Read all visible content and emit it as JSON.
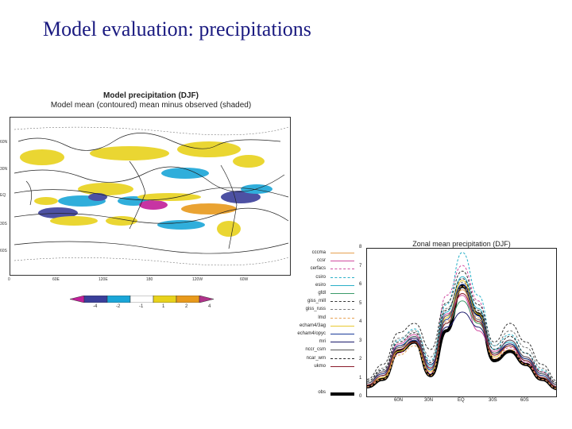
{
  "slide": {
    "title": "Model evaluation: precipitations"
  },
  "map": {
    "title_line1": "Model precipitation (DJF)",
    "title_line2": "Model mean (contoured)  mean minus observed (shaded)",
    "lat_labels": [
      "60N",
      "30N",
      "EQ",
      "30S",
      "60S"
    ],
    "lon_labels": [
      "0",
      "60E",
      "120E",
      "180",
      "120W",
      "60W"
    ],
    "colorbar_labels": [
      "-4",
      "-2",
      "-1",
      "1",
      "2",
      "4"
    ],
    "colorbar_colors": [
      "#c21f9a",
      "#3a3f9a",
      "#1aa6d8",
      "#ffffff",
      "#e8d21c",
      "#e89a1c",
      "#b0328a"
    ]
  },
  "zonal": {
    "title": "Zonal mean precipitation (DJF)",
    "y_ticks": [
      "0",
      "1",
      "2",
      "3",
      "4",
      "5",
      "6",
      "7",
      "8"
    ],
    "x_ticks": [
      "60N",
      "30N",
      "EQ",
      "30S",
      "60S"
    ],
    "legend": [
      {
        "label": "cccma",
        "color": "#e6a050",
        "style": "solid"
      },
      {
        "label": "ccsr",
        "color": "#d04ca0",
        "style": "solid"
      },
      {
        "label": "cerfacs",
        "color": "#d04ca0",
        "style": "dashed"
      },
      {
        "label": "csiro",
        "color": "#2ab0c8",
        "style": "dashed"
      },
      {
        "label": "esiro",
        "color": "#2ab0c8",
        "style": "solid"
      },
      {
        "label": "gfdl",
        "color": "#3a9a6a",
        "style": "solid"
      },
      {
        "label": "giss_mill",
        "color": "#333333",
        "style": "dashed"
      },
      {
        "label": "giss_russ",
        "color": "#777777",
        "style": "dashed"
      },
      {
        "label": "lmd",
        "color": "#e6a050",
        "style": "dashed"
      },
      {
        "label": "echam4/3ag",
        "color": "#e8c830",
        "style": "solid"
      },
      {
        "label": "echam4/opyc",
        "color": "#1a3a9a",
        "style": "solid"
      },
      {
        "label": "mri",
        "color": "#1a1a6a",
        "style": "solid"
      },
      {
        "label": "nccr_csm",
        "color": "#555555",
        "style": "solid"
      },
      {
        "label": "ncar_wm",
        "color": "#222222",
        "style": "dashed"
      },
      {
        "label": "ukmo",
        "color": "#8a1a2a",
        "style": "solid"
      },
      {
        "label": "obs",
        "color": "#000000",
        "style": "thick"
      }
    ]
  },
  "chart_data": {
    "type": "line",
    "title": "Zonal mean precipitation (DJF)",
    "xlabel": "",
    "ylabel": "",
    "x": [
      -90,
      -75,
      -60,
      -45,
      -30,
      -15,
      0,
      15,
      30,
      45,
      60,
      75,
      90
    ],
    "x_tick_labels": [
      "60N",
      "30N",
      "EQ",
      "30S",
      "60S"
    ],
    "ylim": [
      0,
      8
    ],
    "series": [
      {
        "name": "obs",
        "values": [
          0.6,
          1.0,
          2.5,
          3.0,
          1.2,
          3.6,
          6.0,
          4.5,
          2.0,
          2.5,
          1.8,
          1.0,
          0.5
        ]
      },
      {
        "name": "cccma",
        "values": [
          0.7,
          1.2,
          2.7,
          3.1,
          1.4,
          4.2,
          5.8,
          4.0,
          2.3,
          2.9,
          2.0,
          1.2,
          0.6
        ]
      },
      {
        "name": "ccsr",
        "values": [
          0.8,
          1.4,
          2.9,
          3.4,
          1.6,
          4.5,
          5.5,
          3.6,
          2.5,
          3.1,
          2.2,
          1.4,
          0.7
        ]
      },
      {
        "name": "cerfacs",
        "values": [
          0.6,
          1.1,
          2.4,
          3.2,
          1.3,
          5.5,
          7.1,
          5.2,
          2.2,
          2.7,
          1.9,
          1.0,
          0.5
        ]
      },
      {
        "name": "csiro",
        "values": [
          0.9,
          1.5,
          3.1,
          3.7,
          2.0,
          5.0,
          7.8,
          5.5,
          2.8,
          3.4,
          2.4,
          1.5,
          0.8
        ]
      },
      {
        "name": "esiro",
        "values": [
          0.8,
          1.3,
          2.8,
          3.3,
          1.7,
          4.6,
          6.5,
          4.8,
          2.6,
          3.0,
          2.1,
          1.3,
          0.7
        ]
      },
      {
        "name": "gfdl",
        "values": [
          0.7,
          1.2,
          2.6,
          3.0,
          1.5,
          4.0,
          5.2,
          4.0,
          2.4,
          2.8,
          2.0,
          1.1,
          0.6
        ]
      },
      {
        "name": "giss_mill",
        "values": [
          1.0,
          1.8,
          3.5,
          4.0,
          2.6,
          5.1,
          6.8,
          5.0,
          3.0,
          4.0,
          3.0,
          1.8,
          0.9
        ]
      },
      {
        "name": "giss_russ",
        "values": [
          0.9,
          1.6,
          3.2,
          3.6,
          2.2,
          4.8,
          6.2,
          4.6,
          2.8,
          3.6,
          2.7,
          1.6,
          0.8
        ]
      },
      {
        "name": "lmd",
        "values": [
          0.6,
          1.0,
          2.3,
          2.8,
          1.2,
          4.1,
          6.0,
          4.3,
          2.1,
          2.6,
          1.8,
          1.0,
          0.5
        ]
      },
      {
        "name": "echam4/3ag",
        "values": [
          0.7,
          1.1,
          2.5,
          3.0,
          1.4,
          4.3,
          6.3,
          4.5,
          2.2,
          2.8,
          2.0,
          1.1,
          0.6
        ]
      },
      {
        "name": "echam4/opyc",
        "values": [
          0.7,
          1.2,
          2.6,
          3.1,
          1.5,
          4.2,
          6.1,
          4.4,
          2.3,
          2.9,
          2.0,
          1.2,
          0.6
        ]
      },
      {
        "name": "mri",
        "values": [
          0.8,
          1.3,
          2.8,
          3.2,
          1.8,
          3.8,
          4.6,
          3.8,
          2.4,
          2.9,
          2.1,
          1.3,
          0.7
        ]
      },
      {
        "name": "nccr_csm",
        "values": [
          0.8,
          1.4,
          2.7,
          3.3,
          1.6,
          4.4,
          5.9,
          4.2,
          2.4,
          3.1,
          2.2,
          1.3,
          0.7
        ]
      },
      {
        "name": "ncar_wm",
        "values": [
          0.9,
          1.5,
          3.0,
          3.5,
          1.9,
          4.7,
          6.4,
          4.7,
          2.6,
          3.3,
          2.4,
          1.4,
          0.8
        ]
      },
      {
        "name": "ukmo",
        "values": [
          0.7,
          1.2,
          2.6,
          3.0,
          1.6,
          4.0,
          5.6,
          4.1,
          2.3,
          2.8,
          2.0,
          1.1,
          0.6
        ]
      }
    ]
  }
}
